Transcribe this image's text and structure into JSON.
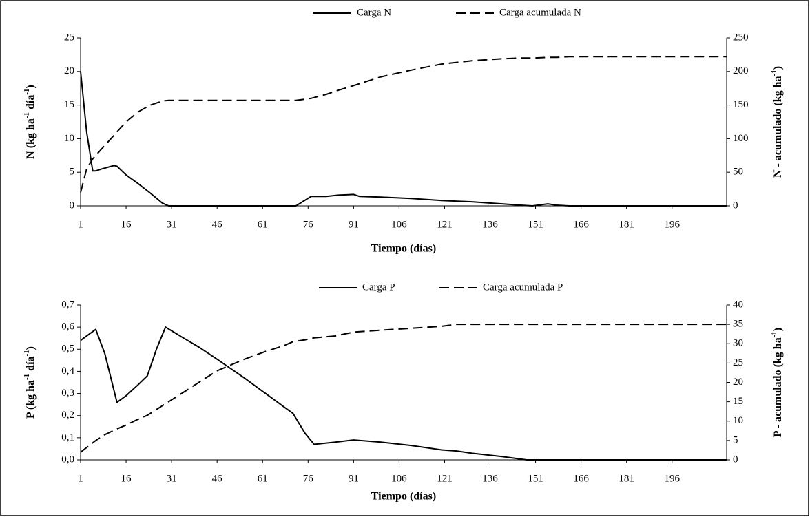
{
  "chart_data": [
    {
      "type": "line",
      "xlabel": "Tiempo (días)",
      "ylabel": [
        "N (kg ha",
        "-1",
        " día",
        "-1",
        ")"
      ],
      "y2label": [
        "N - acumulado (kg ha",
        "-1",
        ")"
      ],
      "x": [
        1,
        3,
        5,
        6,
        8,
        12,
        13,
        16,
        20,
        24,
        28,
        30,
        72,
        77,
        82,
        86,
        91,
        93,
        100,
        110,
        120,
        130,
        140,
        146,
        150,
        155,
        158,
        162,
        214
      ],
      "series": [
        {
          "name": "Carga N",
          "color": "#000000",
          "style": "solid",
          "values": [
            20,
            11,
            5.2,
            5.2,
            5.5,
            6.0,
            5.9,
            4.6,
            3.3,
            1.9,
            0.4,
            0,
            0,
            1.4,
            1.4,
            1.6,
            1.7,
            1.4,
            1.3,
            1.1,
            0.8,
            0.6,
            0.3,
            0.1,
            0,
            0.3,
            0.1,
            0,
            0
          ]
        },
        {
          "name": "Carga acumulada N",
          "color": "#000000",
          "style": "dashed",
          "axis": "y2",
          "values": [
            20,
            55,
            70,
            75,
            85,
            105,
            110,
            125,
            140,
            150,
            156,
            157,
            157,
            160,
            166,
            172,
            179,
            182,
            192,
            202,
            211,
            216,
            219,
            220,
            220,
            221,
            221,
            222,
            222
          ]
        }
      ],
      "xlim": [
        1,
        214
      ],
      "xticks": [
        1,
        16,
        31,
        46,
        61,
        76,
        91,
        106,
        121,
        136,
        151,
        166,
        181,
        196
      ],
      "ylim": [
        0,
        25
      ],
      "yticks": [
        0,
        5,
        10,
        15,
        20,
        25
      ],
      "y2lim": [
        0,
        250
      ],
      "y2ticks": [
        0,
        50,
        100,
        150,
        200,
        250
      ]
    },
    {
      "type": "line",
      "xlabel": "Tiempo (días)",
      "ylabel": [
        "P (kg ha",
        "-1",
        " día",
        "-1",
        ")"
      ],
      "y2label": [
        "P - acumulado (kg ha",
        "-1",
        ")"
      ],
      "x": [
        1,
        6,
        9,
        13,
        16,
        20,
        23,
        26,
        29,
        35,
        40,
        46,
        55,
        62,
        68,
        71,
        75,
        78,
        85,
        91,
        100,
        110,
        120,
        125,
        130,
        140,
        148,
        214
      ],
      "series": [
        {
          "name": "Carga P",
          "color": "#000000",
          "style": "solid",
          "values": [
            0.54,
            0.59,
            0.48,
            0.26,
            0.29,
            0.34,
            0.38,
            0.5,
            0.6,
            0.55,
            0.51,
            0.455,
            0.37,
            0.3,
            0.24,
            0.21,
            0.12,
            0.07,
            0.08,
            0.09,
            0.08,
            0.065,
            0.045,
            0.04,
            0.03,
            0.015,
            0,
            0
          ]
        },
        {
          "name": "Carga acumulada P",
          "color": "#000000",
          "style": "dashed",
          "axis": "y2",
          "values": [
            2,
            5,
            6.5,
            8,
            9,
            10.5,
            11.5,
            13,
            14.5,
            17.5,
            20,
            23,
            26,
            28,
            29.5,
            30.5,
            31,
            31.5,
            32,
            33,
            33.5,
            34,
            34.5,
            35,
            35,
            35,
            35,
            35
          ]
        }
      ],
      "xlim": [
        1,
        214
      ],
      "xticks": [
        1,
        16,
        31,
        46,
        61,
        76,
        91,
        106,
        121,
        136,
        151,
        166,
        181,
        196
      ],
      "ylim": [
        0,
        0.7
      ],
      "yticks": [
        {
          "value": 0,
          "label": "0,0"
        },
        {
          "value": 0.1,
          "label": "0,1"
        },
        {
          "value": 0.2,
          "label": "0,2"
        },
        {
          "value": 0.3,
          "label": "0,3"
        },
        {
          "value": 0.4,
          "label": "0,4"
        },
        {
          "value": 0.5,
          "label": "0,5"
        },
        {
          "value": 0.6,
          "label": "0,6"
        },
        {
          "value": 0.7,
          "label": "0,7"
        }
      ],
      "y2lim": [
        0,
        40
      ],
      "y2ticks": [
        0,
        5,
        10,
        15,
        20,
        25,
        30,
        35,
        40
      ]
    }
  ]
}
